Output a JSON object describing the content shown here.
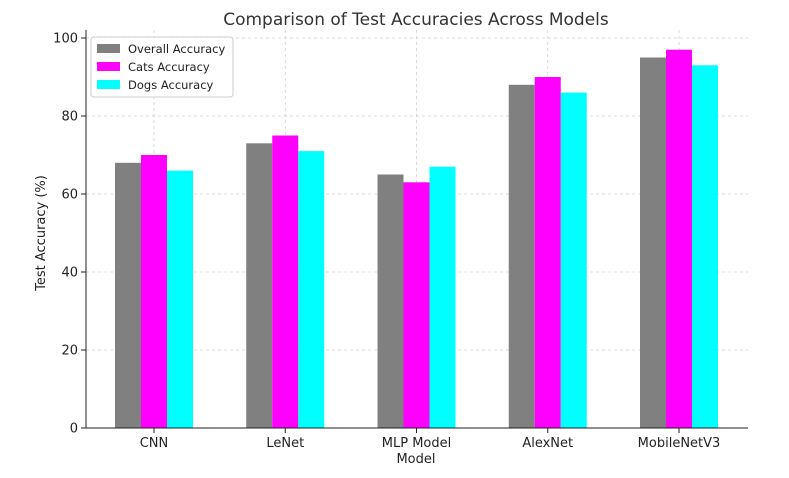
{
  "chart_data": {
    "type": "bar",
    "title": "Comparison of Test Accuracies Across Models",
    "xlabel": "Model",
    "ylabel": "Test Accuracy (%)",
    "categories": [
      "CNN",
      "LeNet",
      "MLP Model",
      "AlexNet",
      "MobileNetV3"
    ],
    "series": [
      {
        "name": "Overall Accuracy",
        "color": "#808080",
        "values": [
          68,
          73,
          65,
          88,
          95
        ]
      },
      {
        "name": "Cats Accuracy",
        "color": "#ff00ff",
        "values": [
          70,
          75,
          63,
          90,
          97
        ]
      },
      {
        "name": "Dogs Accuracy",
        "color": "#00ffff",
        "values": [
          66,
          71,
          67,
          86,
          93
        ]
      }
    ],
    "ylim": [
      0,
      100
    ],
    "yticks": [
      0,
      20,
      40,
      60,
      80,
      100
    ],
    "grid": true,
    "legend_position": "top-left"
  }
}
